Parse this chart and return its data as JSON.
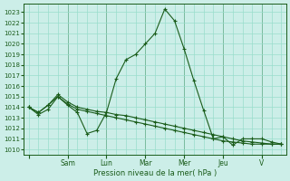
{
  "bg_color": "#cceee8",
  "grid_color": "#99ddcc",
  "line_color": "#1a5c1a",
  "ylim": [
    1009.5,
    1023.8
  ],
  "yticks": [
    1010,
    1011,
    1012,
    1013,
    1014,
    1015,
    1016,
    1017,
    1018,
    1019,
    1020,
    1021,
    1022,
    1023
  ],
  "xlabel": "Pression niveau de la mer( hPa )",
  "series1": [
    1014.0,
    1013.3,
    1013.8,
    1015.0,
    1014.2,
    1013.5,
    1011.5,
    1011.8,
    1013.5,
    1016.7,
    1018.5,
    1019.0,
    1020.0,
    1021.0,
    1023.3,
    1022.2,
    1019.5,
    1016.5,
    1013.7,
    1011.0,
    1011.2,
    1010.4,
    1011.0,
    1011.0,
    1011.0,
    1010.7,
    1010.5
  ],
  "series2": [
    1014.0,
    1013.5,
    1014.2,
    1015.2,
    1014.5,
    1014.0,
    1013.8,
    1013.6,
    1013.5,
    1013.3,
    1013.2,
    1013.0,
    1012.8,
    1012.6,
    1012.4,
    1012.2,
    1012.0,
    1011.8,
    1011.6,
    1011.4,
    1011.2,
    1011.0,
    1010.8,
    1010.7,
    1010.6,
    1010.5,
    1010.5
  ],
  "series3": [
    1014.0,
    1013.5,
    1014.2,
    1015.0,
    1014.3,
    1013.8,
    1013.6,
    1013.4,
    1013.2,
    1013.0,
    1012.8,
    1012.6,
    1012.4,
    1012.2,
    1012.0,
    1011.8,
    1011.6,
    1011.4,
    1011.2,
    1011.0,
    1010.8,
    1010.7,
    1010.6,
    1010.5,
    1010.5,
    1010.5,
    1010.5
  ],
  "n_points": 27,
  "day_tick_pos": [
    0,
    4,
    8,
    12,
    16,
    20,
    24
  ],
  "day_labels": [
    "",
    "Sam",
    "Lun",
    "Mar",
    "Mer",
    "Jeu",
    "V"
  ]
}
